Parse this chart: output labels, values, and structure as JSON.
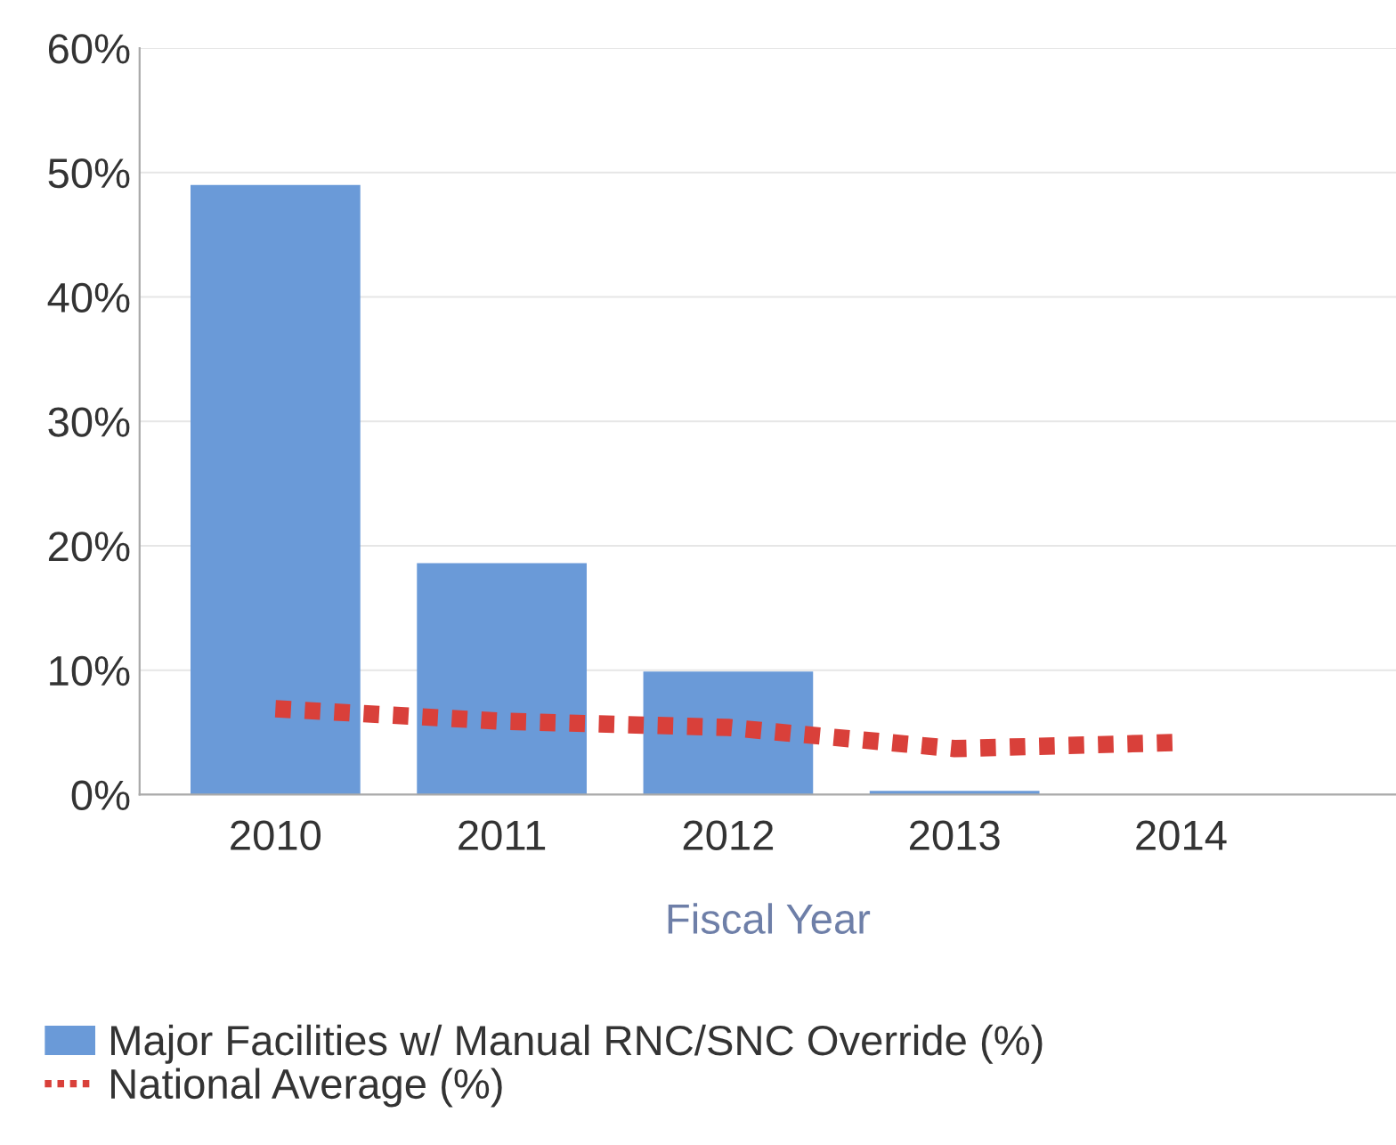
{
  "chart_data": {
    "type": "bar",
    "xlabel": "Fiscal Year",
    "categories": [
      "2010",
      "2011",
      "2012",
      "2013",
      "2014"
    ],
    "series": [
      {
        "name": "Major Facilities w/ Manual RNC/SNC Override (%)",
        "color": "#6a9ad8",
        "values": [
          49,
          18.6,
          9.9,
          0.3,
          null
        ]
      },
      {
        "name": "National Average (%)",
        "type": "line",
        "color": "#d9403a",
        "line_style": "dotted",
        "values": [
          6.9,
          5.9,
          5.4,
          3.7,
          4.2
        ]
      }
    ],
    "ylim": [
      0,
      60
    ],
    "yticks": [
      {
        "value": 0,
        "label": "0%"
      },
      {
        "value": 10,
        "label": "10%"
      },
      {
        "value": 20,
        "label": "20%"
      },
      {
        "value": 30,
        "label": "30%"
      },
      {
        "value": 40,
        "label": "40%"
      },
      {
        "value": 50,
        "label": "50%"
      },
      {
        "value": 60,
        "label": "60%"
      }
    ],
    "grid": "y",
    "legend": "bottom left"
  }
}
